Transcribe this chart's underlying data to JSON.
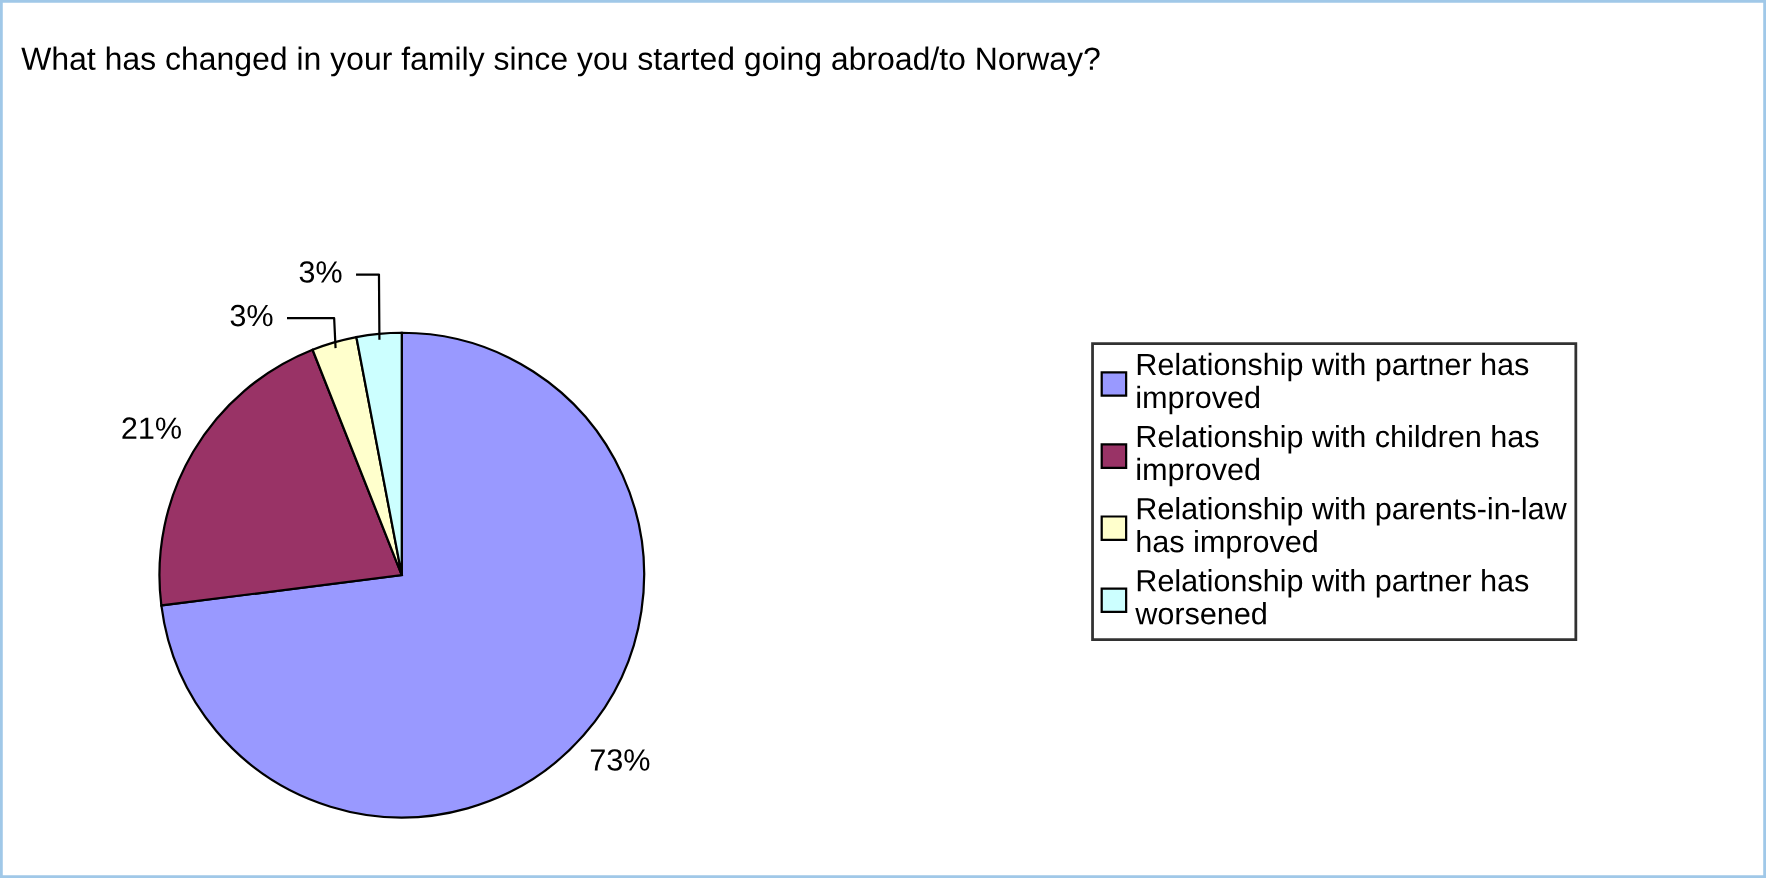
{
  "chart_data": {
    "type": "pie",
    "title": "What has changed in your family since you started going abroad/to Norway?",
    "categories": [
      "Relationship with partner has improved",
      "Relationship with children has improved",
      "Relationship with parents-in-law has improved",
      "Relationship with partner has worsened"
    ],
    "values": [
      73,
      21,
      3,
      3
    ],
    "colors": [
      "#9999ff",
      "#993366",
      "#ffffcc",
      "#ccffff"
    ],
    "value_labels": [
      "73%",
      "21%",
      "3%",
      "3%"
    ],
    "legend": "right"
  }
}
